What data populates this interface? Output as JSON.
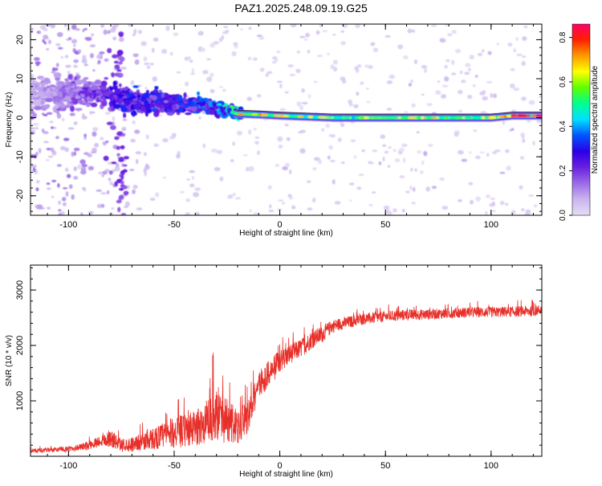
{
  "figure_title": "PAZ1.2025.248.09.19.G25",
  "colors": {
    "snr_line": "#e8302a",
    "frame": "#000000",
    "background": "#ffffff",
    "colormap": [
      "#e5ddf5",
      "#c9b3ee",
      "#9a6ae8",
      "#6a1fe0",
      "#2a00e8",
      "#0055ff",
      "#00e0ff",
      "#00ff90",
      "#5fff00",
      "#ffff00",
      "#ff9900",
      "#ff2000",
      "#ff006a"
    ]
  },
  "chart_data": [
    {
      "type": "heatmap",
      "title": "",
      "xlabel": "Height of straight line (km)",
      "ylabel": "Frequency (Hz)",
      "xlim": [
        -118,
        124
      ],
      "ylim": [
        -25,
        24
      ],
      "xticks": [
        -100,
        -50,
        0,
        50,
        100
      ],
      "xtick_labels": [
        "-100",
        "-50",
        "0",
        "50",
        "100"
      ],
      "yticks": [
        -20,
        -10,
        0,
        10,
        20
      ],
      "ytick_labels": [
        "-20",
        "-10",
        "0",
        "10",
        "20"
      ],
      "colorbar": {
        "label": "Normalized spectral amplitude",
        "range": [
          0.0,
          0.86
        ],
        "ticks": [
          0.0,
          0.2,
          0.4,
          0.6,
          0.8
        ],
        "tick_labels": [
          "0.0",
          "0.2",
          "0.4",
          "0.6",
          "0.8"
        ]
      },
      "ridge": [
        {
          "h": -118,
          "f": 6,
          "a": 0.1
        },
        {
          "h": -100,
          "f": 6,
          "a": 0.15
        },
        {
          "h": -88,
          "f": 6.5,
          "a": 0.22
        },
        {
          "h": -80,
          "f": 5,
          "a": 0.26
        },
        {
          "h": -70,
          "f": 4,
          "a": 0.28
        },
        {
          "h": -60,
          "f": 4.5,
          "a": 0.3
        },
        {
          "h": -50,
          "f": 3,
          "a": 0.28
        },
        {
          "h": -40,
          "f": 3.5,
          "a": 0.32
        },
        {
          "h": -30,
          "f": 2.5,
          "a": 0.36
        },
        {
          "h": -20,
          "f": 1,
          "a": 0.5
        },
        {
          "h": -10,
          "f": 0.8,
          "a": 0.62
        },
        {
          "h": 0,
          "f": 0.5,
          "a": 0.55
        },
        {
          "h": 10,
          "f": 0.3,
          "a": 0.5
        },
        {
          "h": 25,
          "f": 0,
          "a": 0.42
        },
        {
          "h": 50,
          "f": 0,
          "a": 0.45
        },
        {
          "h": 80,
          "f": 0,
          "a": 0.48
        },
        {
          "h": 100,
          "f": 0,
          "a": 0.5
        },
        {
          "h": 110,
          "f": 0.5,
          "a": 0.66
        },
        {
          "h": 124,
          "f": 0.5,
          "a": 0.86
        }
      ]
    },
    {
      "type": "line",
      "title": "",
      "xlabel": "Height of straight line (km)",
      "ylabel": "SNR (10 * v/v)",
      "xlim": [
        -118,
        124
      ],
      "ylim": [
        0,
        3450
      ],
      "xticks": [
        -100,
        -50,
        0,
        50,
        100
      ],
      "xtick_labels": [
        "-100",
        "-50",
        "0",
        "50",
        "100"
      ],
      "yticks": [
        1000,
        2000,
        3000
      ],
      "ytick_labels": [
        "1000",
        "2000",
        "3000"
      ],
      "series": [
        {
          "name": "SNR",
          "x": [
            -118,
            -110,
            -100,
            -95,
            -90,
            -85,
            -80,
            -75,
            -70,
            -65,
            -60,
            -55,
            -50,
            -45,
            -40,
            -35,
            -30,
            -25,
            -20,
            -15,
            -10,
            -5,
            0,
            5,
            10,
            15,
            20,
            25,
            30,
            40,
            50,
            60,
            70,
            80,
            90,
            100,
            110,
            120,
            124
          ],
          "y": [
            100,
            110,
            130,
            160,
            200,
            280,
            320,
            200,
            220,
            260,
            320,
            380,
            430,
            460,
            500,
            600,
            700,
            650,
            500,
            700,
            1300,
            1500,
            1700,
            1850,
            1950,
            2100,
            2200,
            2350,
            2400,
            2480,
            2520,
            2550,
            2560,
            2580,
            2600,
            2600,
            2610,
            2620,
            2650
          ],
          "noise": [
            40,
            40,
            50,
            60,
            80,
            100,
            160,
            120,
            130,
            160,
            200,
            240,
            280,
            300,
            330,
            380,
            420,
            420,
            350,
            280,
            260,
            240,
            220,
            180,
            170,
            160,
            150,
            120,
            110,
            100,
            100,
            100,
            95,
            95,
            95,
            95,
            95,
            95,
            95
          ]
        }
      ]
    }
  ]
}
